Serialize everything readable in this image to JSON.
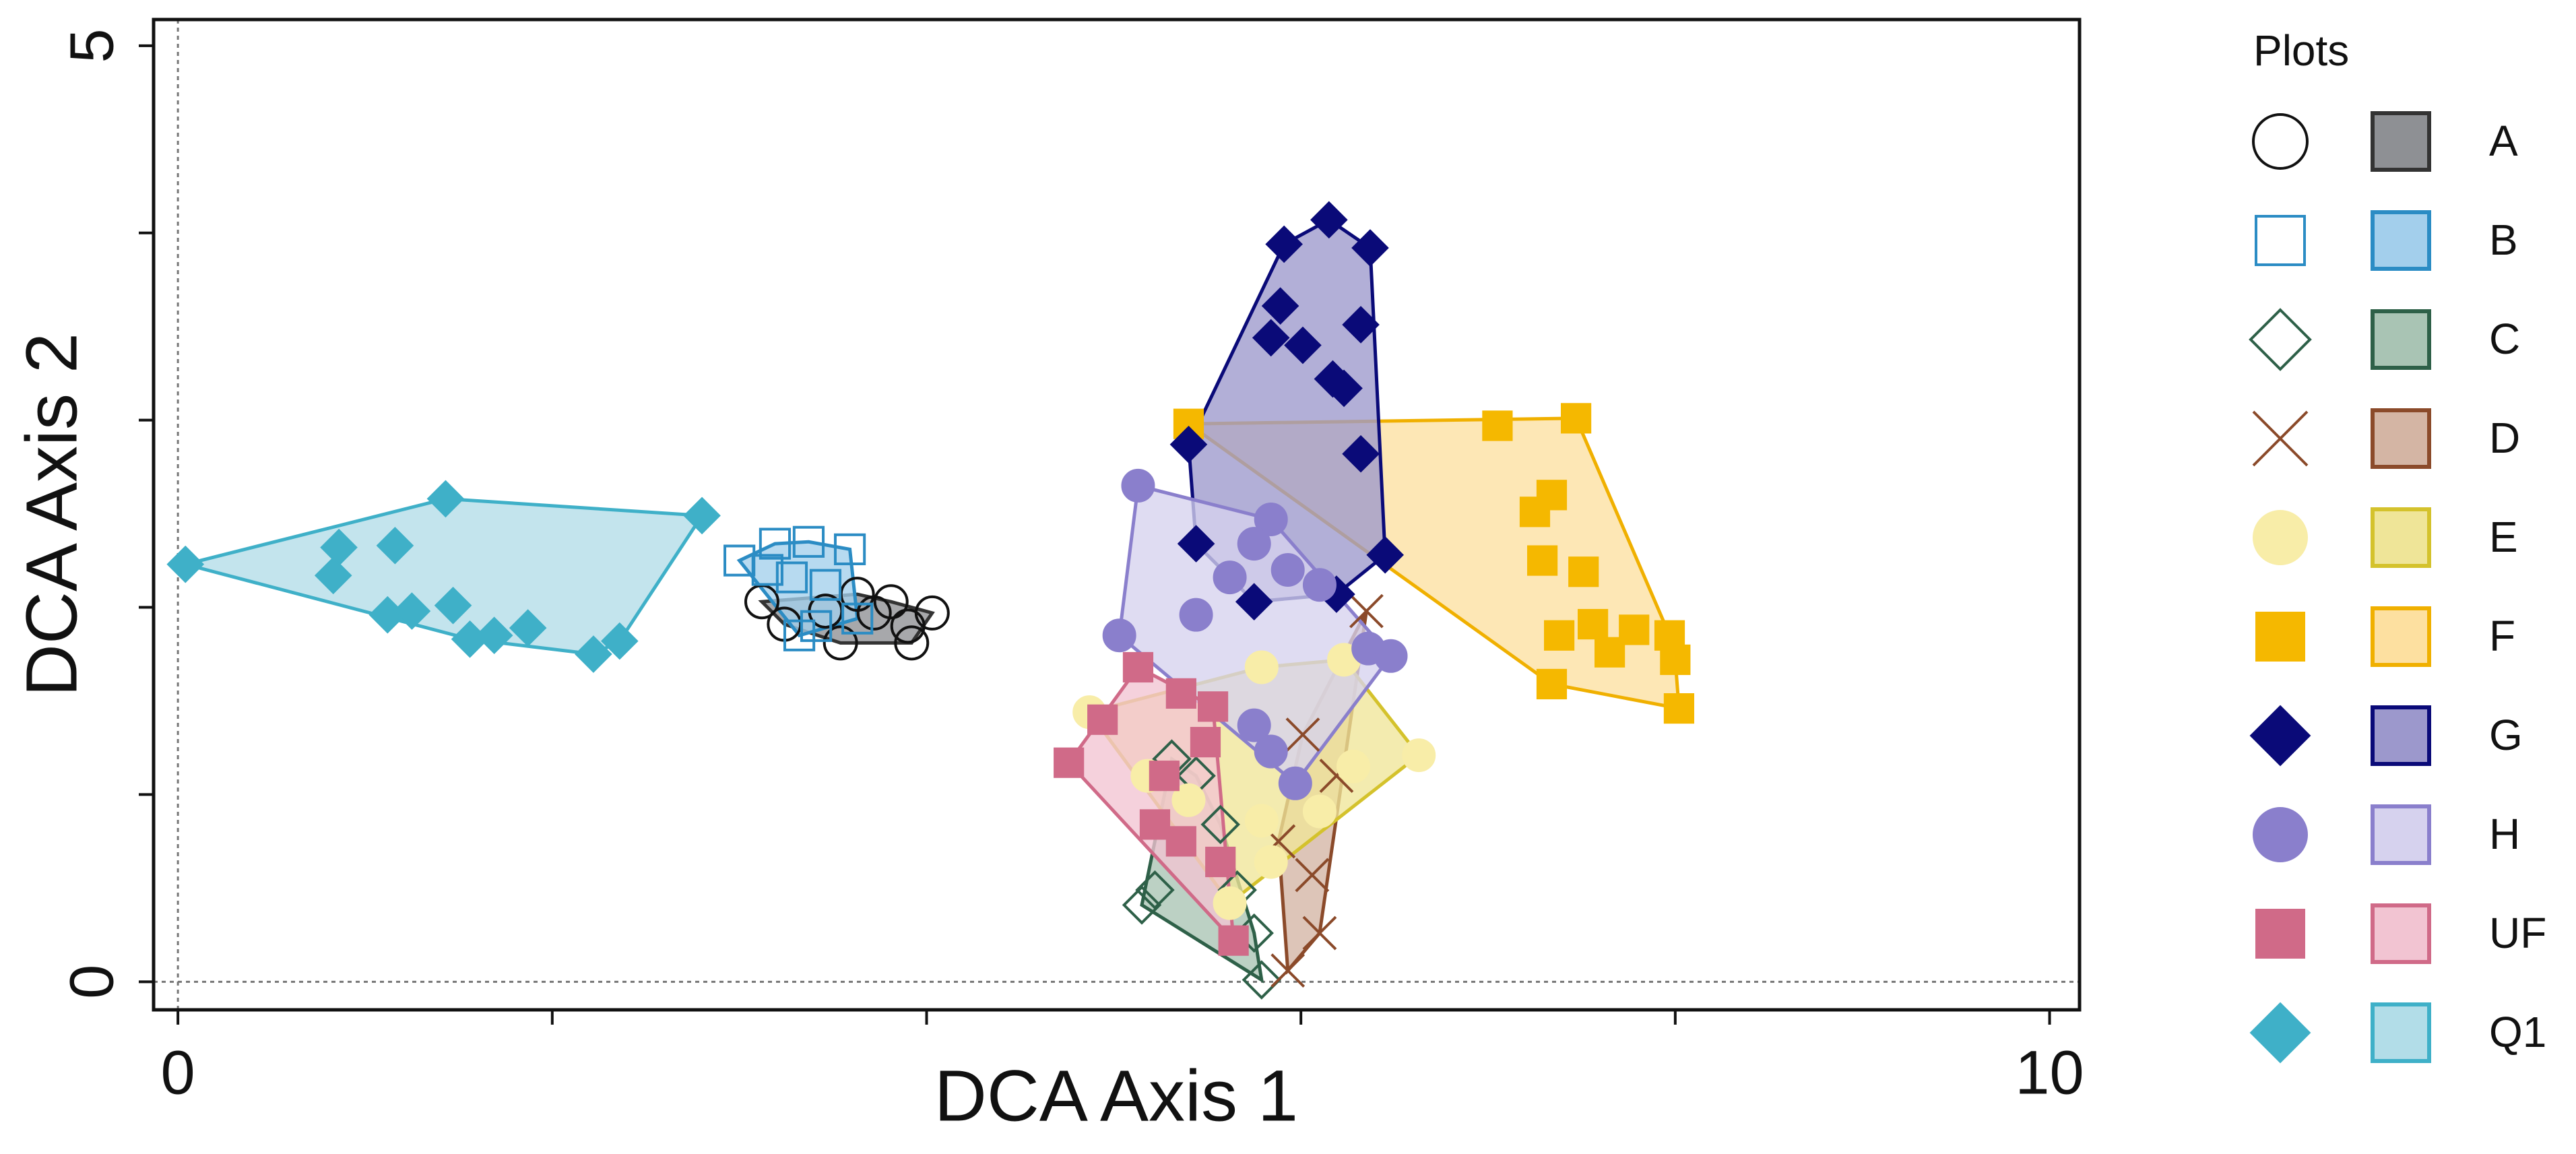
{
  "chart_data": {
    "type": "scatter",
    "x_label": "DCA Axis 1",
    "y_label": "DCA Axis 2",
    "legend_title": "Plots",
    "xlim": [
      -0.13,
      10.16
    ],
    "ylim": [
      -0.15,
      5.14
    ],
    "xticks": [
      0,
      {
        "value": 2,
        "label": null
      },
      {
        "value": 4,
        "label": null
      },
      {
        "value": 6,
        "label": null
      },
      {
        "value": 8,
        "label": null
      },
      10
    ],
    "yticks": [
      0,
      {
        "value": 1,
        "label": null
      },
      {
        "value": 2,
        "label": null
      },
      {
        "value": 3,
        "label": null
      },
      {
        "value": 4,
        "label": null
      },
      5
    ],
    "series": [
      {
        "name": "A",
        "color": "#111111",
        "marker": "circle",
        "filled": false,
        "hull_color": "#8e9094",
        "hull_edge": "#333333",
        "x": [
          3.12,
          3.24,
          3.46,
          3.54,
          3.72,
          3.9,
          3.92,
          4.03,
          3.81,
          3.63
        ],
        "values": [
          2.03,
          1.91,
          1.98,
          1.81,
          1.97,
          1.9,
          1.81,
          1.97,
          2.03,
          2.07
        ]
      },
      {
        "name": "B",
        "color": "#2b8cc4",
        "marker": "square",
        "filled": false,
        "hull_color": "#a3cfec",
        "hull_edge": "#2b8cc4",
        "x": [
          3.0,
          3.19,
          3.37,
          3.59,
          3.28,
          3.46,
          3.15,
          3.41,
          3.63,
          3.32
        ],
        "values": [
          2.25,
          2.34,
          2.35,
          2.31,
          2.16,
          2.12,
          2.2,
          1.9,
          1.94,
          1.85
        ]
      },
      {
        "name": "C",
        "color": "#2e6048",
        "marker": "diamond",
        "filled": false,
        "hull_color": "#a9c4b4",
        "hull_edge": "#2e6048",
        "x": [
          5.15,
          5.22,
          5.79,
          5.31,
          5.57,
          5.75,
          5.44,
          5.66
        ],
        "values": [
          0.41,
          0.49,
          0.01,
          1.19,
          0.84,
          0.26,
          1.1,
          0.49
        ]
      },
      {
        "name": "D",
        "color": "#8b4a2a",
        "marker": "x",
        "filled": false,
        "hull_color": "#d4b5a4",
        "hull_edge": "#8b4a2a",
        "x": [
          6.35,
          6.01,
          6.1,
          5.93,
          6.19,
          5.88,
          6.06
        ],
        "values": [
          1.98,
          1.32,
          0.26,
          0.06,
          1.1,
          0.75,
          0.57
        ]
      },
      {
        "name": "E",
        "color": "#f8eda8",
        "marker": "circle",
        "filled": true,
        "hull_color": "#efe598",
        "hull_edge": "#d4c22c",
        "x": [
          4.87,
          6.23,
          6.63,
          5.18,
          5.4,
          5.79,
          6.1,
          5.62,
          5.84,
          6.28,
          5.79
        ],
        "values": [
          1.44,
          1.72,
          1.21,
          1.1,
          0.97,
          0.86,
          0.91,
          0.42,
          0.64,
          1.15,
          1.68
        ]
      },
      {
        "name": "F",
        "color": "#f5b800",
        "marker": "square",
        "filled": true,
        "hull_color": "#fde0a0",
        "hull_edge": "#f0b000",
        "x": [
          5.4,
          7.47,
          7.05,
          7.25,
          7.34,
          7.29,
          7.51,
          7.38,
          7.56,
          7.78,
          7.97,
          8.0,
          7.34,
          8.02,
          7.65
        ],
        "values": [
          2.98,
          3.01,
          2.97,
          2.51,
          2.6,
          2.25,
          2.19,
          1.85,
          1.91,
          1.88,
          1.85,
          1.72,
          1.59,
          1.46,
          1.76
        ]
      },
      {
        "name": "G",
        "color": "#0a0a78",
        "marker": "diamond",
        "filled": true,
        "hull_color": "#9c98cc",
        "hull_edge": "#0a0a78",
        "x": [
          6.15,
          5.91,
          6.37,
          5.89,
          5.84,
          6.01,
          6.17,
          6.32,
          6.23,
          5.4,
          6.32,
          6.45,
          5.44,
          5.75,
          6.19
        ],
        "values": [
          4.07,
          3.94,
          3.92,
          3.61,
          3.44,
          3.4,
          3.22,
          3.51,
          3.17,
          2.87,
          2.82,
          2.28,
          2.34,
          2.03,
          2.07
        ]
      },
      {
        "name": "H",
        "color": "#8a7fcc",
        "marker": "circle",
        "filled": true,
        "hull_color": "#d6d2ee",
        "hull_edge": "#8a7fcc",
        "x": [
          5.13,
          5.84,
          5.75,
          5.62,
          5.93,
          6.1,
          5.44,
          5.03,
          6.36,
          6.48,
          5.75,
          5.97,
          5.84
        ],
        "values": [
          2.65,
          2.47,
          2.34,
          2.16,
          2.2,
          2.12,
          1.96,
          1.85,
          1.78,
          1.74,
          1.37,
          1.06,
          1.23
        ]
      },
      {
        "name": "UF",
        "color": "#d06a88",
        "marker": "square",
        "filled": true,
        "hull_color": "#f2c4d2",
        "hull_edge": "#d06a88",
        "x": [
          4.76,
          4.94,
          5.13,
          5.36,
          5.53,
          5.22,
          5.36,
          5.57,
          5.64,
          5.49,
          5.27
        ],
        "values": [
          1.17,
          1.4,
          1.68,
          1.54,
          1.47,
          0.84,
          0.75,
          0.64,
          0.22,
          1.28,
          1.1
        ]
      },
      {
        "name": "Q1",
        "color": "#3fb0c8",
        "marker": "diamond",
        "filled": true,
        "hull_color": "#b2dde8",
        "hull_edge": "#3fb0c8",
        "x": [
          0.04,
          1.43,
          2.8,
          0.86,
          1.16,
          0.83,
          1.12,
          1.25,
          1.47,
          1.56,
          1.69,
          1.87,
          2.22,
          2.36
        ],
        "values": [
          2.23,
          2.58,
          2.49,
          2.32,
          2.33,
          2.17,
          1.96,
          1.98,
          2.01,
          1.83,
          1.85,
          1.89,
          1.75,
          1.82
        ]
      }
    ]
  }
}
